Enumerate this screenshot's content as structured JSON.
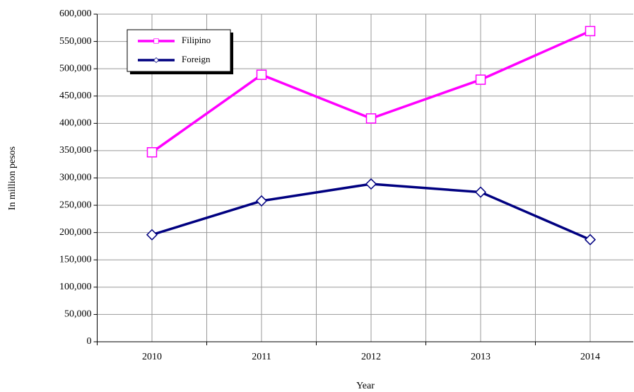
{
  "chart_data": {
    "type": "line",
    "categories": [
      "2010",
      "2011",
      "2012",
      "2013",
      "2014"
    ],
    "series": [
      {
        "name": "Filipino",
        "color": "#ff00ff",
        "marker": "square",
        "values": [
          347000,
          489000,
          409000,
          480000,
          569000
        ]
      },
      {
        "name": "Foreign",
        "color": "#000080",
        "marker": "diamond",
        "values": [
          196000,
          258000,
          289000,
          274000,
          187000
        ]
      }
    ],
    "xlabel": "Year",
    "ylabel": "In million pesos",
    "ylim": [
      0,
      600000
    ],
    "yticks": [
      0,
      {
        "value": 50000,
        "label": "50,000"
      },
      {
        "value": 100000,
        "label": "100,000"
      },
      {
        "value": 150000,
        "label": "150,000"
      },
      {
        "value": 200000,
        "label": "200,000"
      },
      {
        "value": 250000,
        "label": "250,000"
      },
      {
        "value": 300000,
        "label": "300,000"
      },
      {
        "value": 350000,
        "label": "350,000"
      },
      {
        "value": 400000,
        "label": "400,000"
      },
      {
        "value": 450000,
        "label": "450,000"
      },
      {
        "value": 500000,
        "label": "500,000"
      },
      {
        "value": 550000,
        "label": "550,000"
      },
      {
        "value": 600000,
        "label": "600,000"
      }
    ],
    "grid": true,
    "legend": "upper left"
  }
}
